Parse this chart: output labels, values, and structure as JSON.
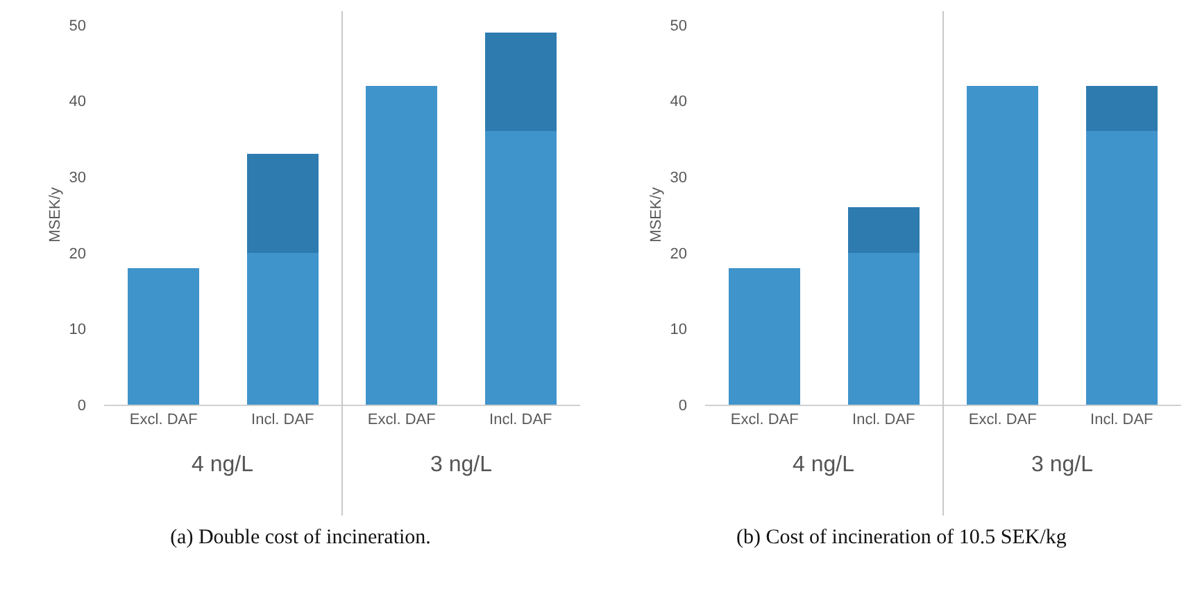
{
  "chart_data": [
    {
      "type": "bar",
      "title": "(a) Double cost of incineration.",
      "ylabel": "MSEK/y",
      "categories": [
        "Excl. DAF",
        "Incl. DAF",
        "Excl. DAF",
        "Incl. DAF"
      ],
      "stacked": true,
      "series": [
        {
          "color": "#3f94cb",
          "values": [
            18,
            20,
            42,
            36
          ]
        },
        {
          "color": "#2e7bb0",
          "values": [
            null,
            13,
            null,
            13
          ]
        }
      ],
      "annotations": [
        "4 ng/L",
        "3 ng/L"
      ],
      "ylim": [
        0,
        50
      ],
      "yticks": [
        0,
        10,
        20,
        30,
        40,
        50
      ],
      "grid": false,
      "legend": false
    },
    {
      "type": "bar",
      "title": "(b) Cost of incineration of 10.5 SEK/kg",
      "ylabel": "MSEK/y",
      "categories": [
        "Excl. DAF",
        "Incl. DAF",
        "Excl. DAF",
        "Incl. DAF"
      ],
      "stacked": true,
      "series": [
        {
          "color": "#3f94cb",
          "values": [
            18,
            20,
            42,
            36
          ]
        },
        {
          "color": "#2e7bb0",
          "values": [
            null,
            6,
            null,
            6
          ]
        }
      ],
      "annotations": [
        "4 ng/L",
        "3 ng/L"
      ],
      "ylim": [
        0,
        50
      ],
      "yticks": [
        0,
        10,
        20,
        30,
        40,
        50
      ],
      "grid": false,
      "legend": false
    }
  ]
}
